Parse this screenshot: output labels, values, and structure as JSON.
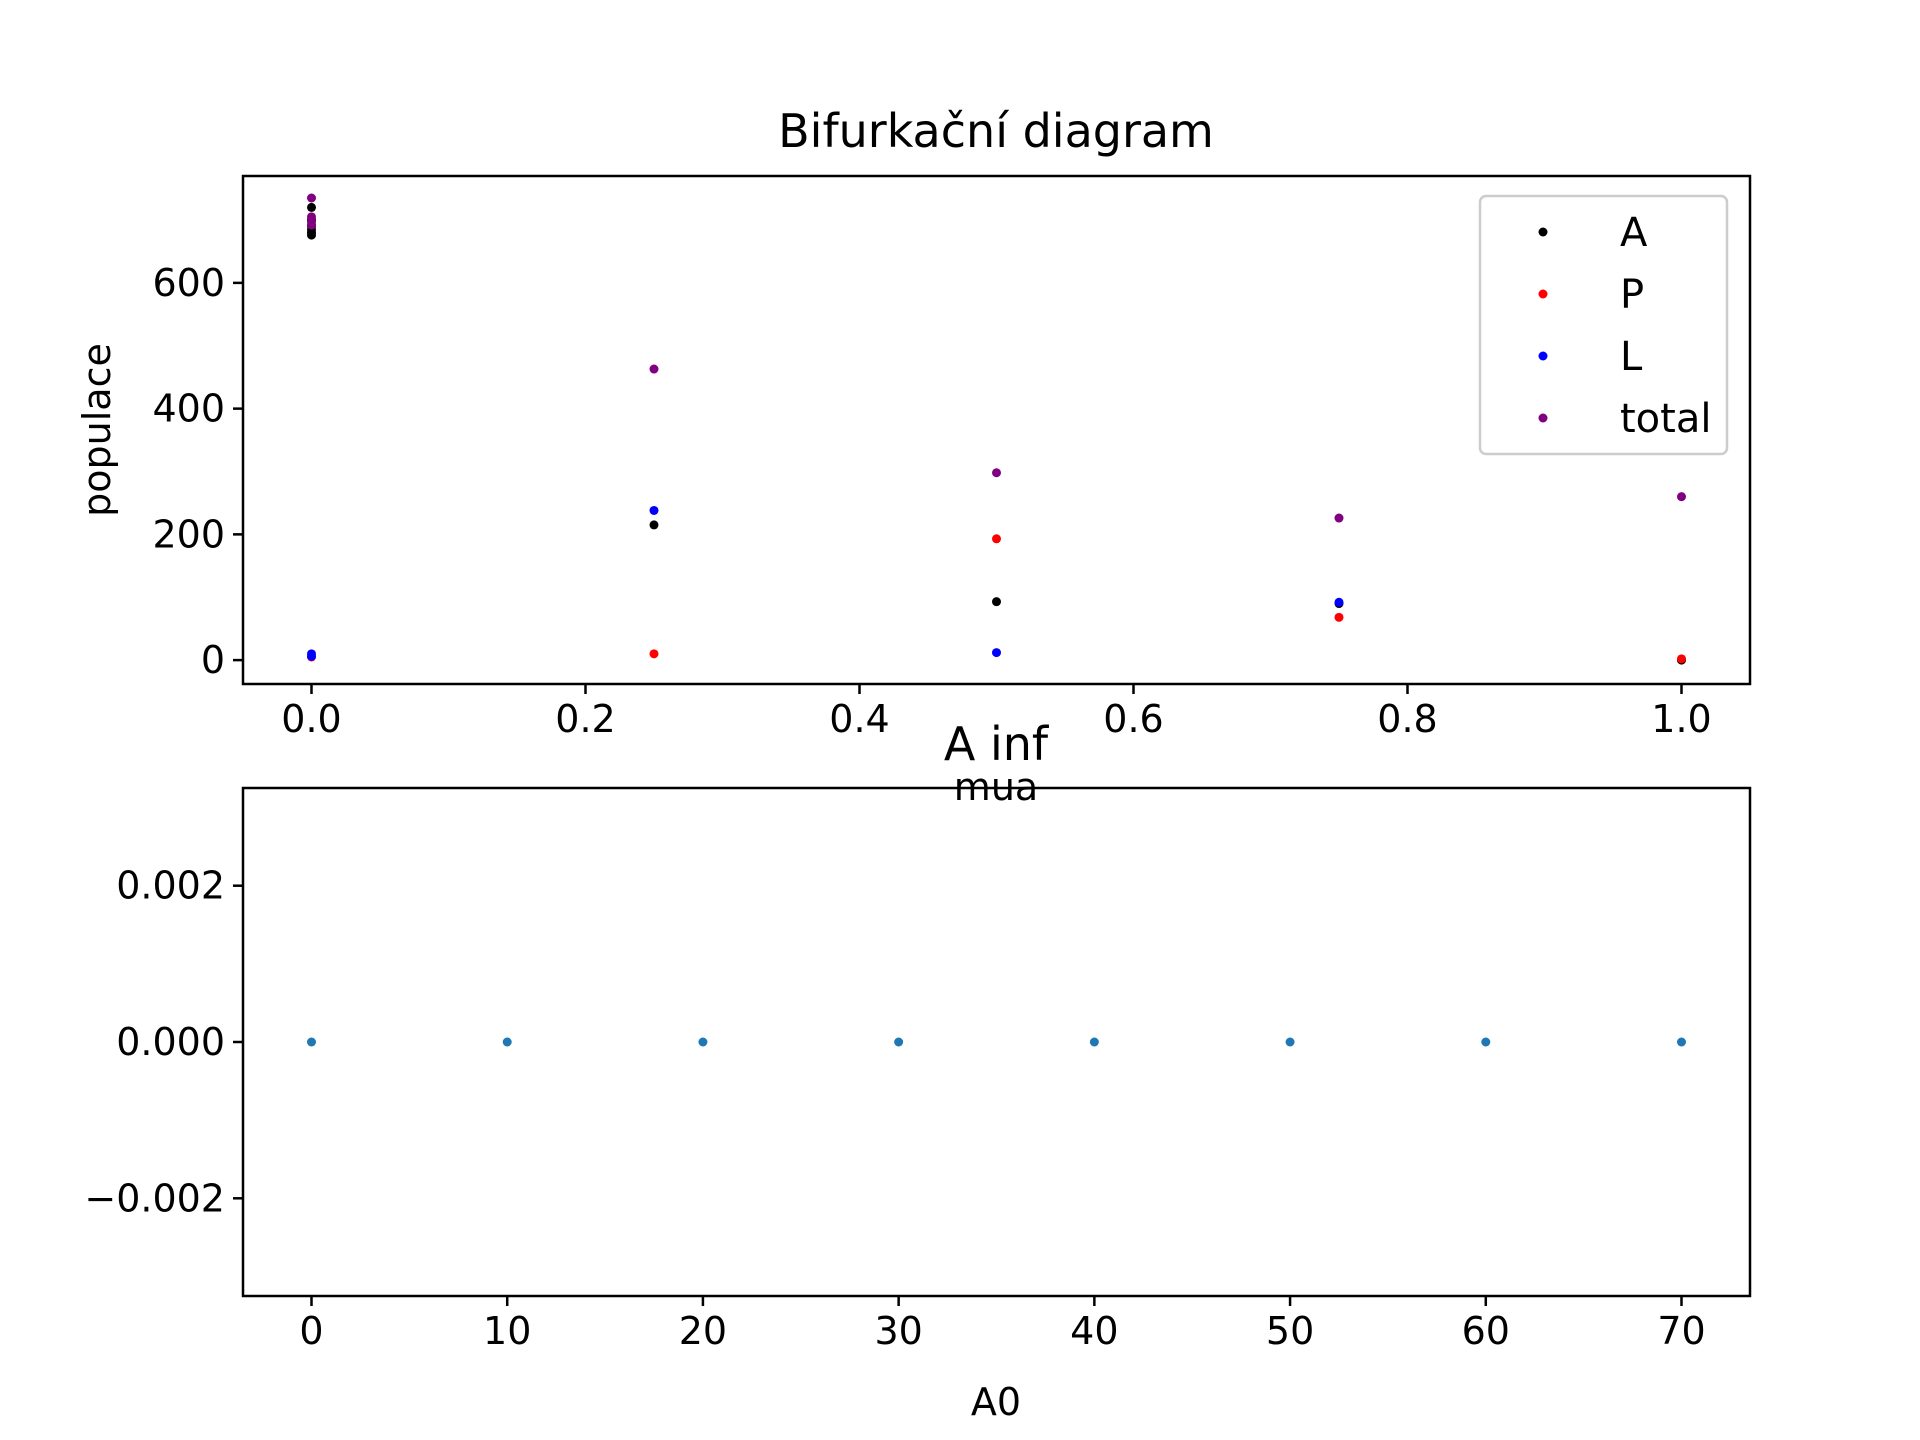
{
  "chart_data": [
    {
      "type": "scatter",
      "title": "Bifurkační diagram",
      "xlabel": "mua",
      "ylabel": "populace",
      "xlim": [
        -0.05,
        1.05
      ],
      "ylim": [
        -38,
        770
      ],
      "xticks": [
        0.0,
        0.2,
        0.4,
        0.6,
        0.8,
        1.0
      ],
      "xtick_labels": [
        "0.0",
        "0.2",
        "0.4",
        "0.6",
        "0.8",
        "1.0"
      ],
      "yticks": [
        0,
        200,
        400,
        600
      ],
      "ytick_labels": [
        "0",
        "200",
        "400",
        "600"
      ],
      "grid": false,
      "legend": "top-right",
      "series": [
        {
          "name": "A",
          "color": "#000000",
          "points": [
            {
              "x": 0.0,
              "y": 720
            },
            {
              "x": 0.0,
              "y": 700
            },
            {
              "x": 0.0,
              "y": 690
            },
            {
              "x": 0.0,
              "y": 685
            },
            {
              "x": 0.0,
              "y": 680
            },
            {
              "x": 0.0,
              "y": 676
            },
            {
              "x": 0.25,
              "y": 215
            },
            {
              "x": 0.5,
              "y": 93
            },
            {
              "x": 0.75,
              "y": 90
            },
            {
              "x": 1.0,
              "y": 0
            }
          ]
        },
        {
          "name": "P",
          "color": "#ff0000",
          "points": [
            {
              "x": 0.0,
              "y": 5
            },
            {
              "x": 0.25,
              "y": 10
            },
            {
              "x": 0.5,
              "y": 193
            },
            {
              "x": 0.75,
              "y": 68
            },
            {
              "x": 1.0,
              "y": 2
            }
          ]
        },
        {
          "name": "L",
          "color": "#0000ff",
          "points": [
            {
              "x": 0.0,
              "y": 10
            },
            {
              "x": 0.0,
              "y": 6
            },
            {
              "x": 0.25,
              "y": 238
            },
            {
              "x": 0.5,
              "y": 12
            },
            {
              "x": 0.75,
              "y": 92
            }
          ]
        },
        {
          "name": "total",
          "color": "#800080",
          "points": [
            {
              "x": 0.0,
              "y": 735
            },
            {
              "x": 0.0,
              "y": 705
            },
            {
              "x": 0.0,
              "y": 697
            },
            {
              "x": 0.0,
              "y": 692
            },
            {
              "x": 0.25,
              "y": 463
            },
            {
              "x": 0.5,
              "y": 298
            },
            {
              "x": 0.75,
              "y": 226
            },
            {
              "x": 1.0,
              "y": 260
            }
          ]
        }
      ]
    },
    {
      "type": "scatter",
      "title": "A inf",
      "xlabel": "A0",
      "ylabel": "",
      "xlim": [
        -3.5,
        73.5
      ],
      "ylim": [
        -0.00325,
        0.00325
      ],
      "xticks": [
        0,
        10,
        20,
        30,
        40,
        50,
        60,
        70
      ],
      "xtick_labels": [
        "0",
        "10",
        "20",
        "30",
        "40",
        "50",
        "60",
        "70"
      ],
      "yticks": [
        -0.002,
        0.0,
        0.002
      ],
      "ytick_labels": [
        "−0.002",
        "0.000",
        "0.002"
      ],
      "grid": false,
      "series": [
        {
          "color": "#1f77b4",
          "points": [
            {
              "x": 0,
              "y": 0
            },
            {
              "x": 10,
              "y": 0
            },
            {
              "x": 20,
              "y": 0
            },
            {
              "x": 30,
              "y": 0
            },
            {
              "x": 40,
              "y": 0
            },
            {
              "x": 50,
              "y": 0
            },
            {
              "x": 60,
              "y": 0
            },
            {
              "x": 70,
              "y": 0
            }
          ]
        }
      ]
    }
  ]
}
